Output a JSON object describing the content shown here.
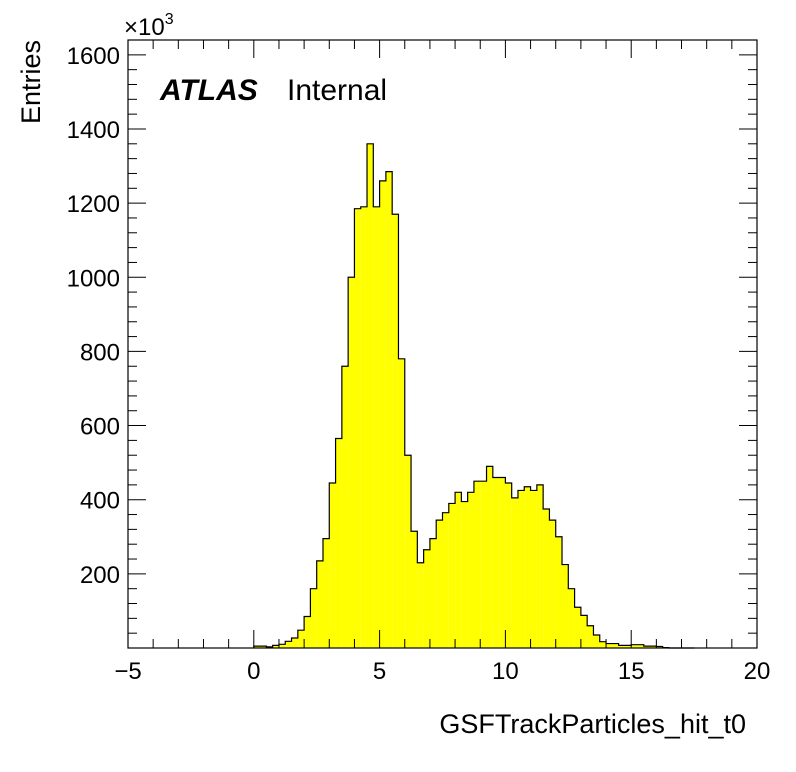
{
  "chart_data": {
    "type": "bar",
    "histogram": true,
    "xlabel": "GSFTrackParticles_hit_t0",
    "ylabel": "Entries",
    "y_multiplier": "×10",
    "y_multiplier_exp": "3",
    "xlim": [
      -5,
      20
    ],
    "ylim": [
      0,
      1640
    ],
    "x_ticks": [
      "−5",
      "0",
      "5",
      "10",
      "15",
      "20"
    ],
    "x_tick_values": [
      -5,
      0,
      5,
      10,
      15,
      20
    ],
    "y_ticks": [
      "200",
      "400",
      "600",
      "800",
      "1000",
      "1200",
      "1400",
      "1600"
    ],
    "y_tick_values": [
      200,
      400,
      600,
      800,
      1000,
      1200,
      1400,
      1600
    ],
    "fill_color": "#ffff00",
    "line_color": "#000000",
    "grid": false,
    "bin_width": 0.25,
    "bin_edges_start": 0.0,
    "values": [
      5,
      5,
      3,
      7,
      10,
      18,
      27,
      48,
      85,
      160,
      235,
      295,
      445,
      565,
      760,
      1000,
      1185,
      1190,
      1360,
      1190,
      1260,
      1285,
      1170,
      780,
      520,
      315,
      230,
      265,
      295,
      345,
      365,
      390,
      420,
      395,
      420,
      450,
      450,
      490,
      460,
      460,
      445,
      405,
      425,
      435,
      425,
      440,
      375,
      345,
      300,
      225,
      160,
      110,
      88,
      60,
      35,
      17,
      12,
      12,
      7,
      7,
      9,
      9,
      5,
      5,
      4,
      1,
      0,
      0,
      0,
      0
    ]
  },
  "annotation": {
    "atlas": "ATLAS",
    "status": "Internal"
  }
}
